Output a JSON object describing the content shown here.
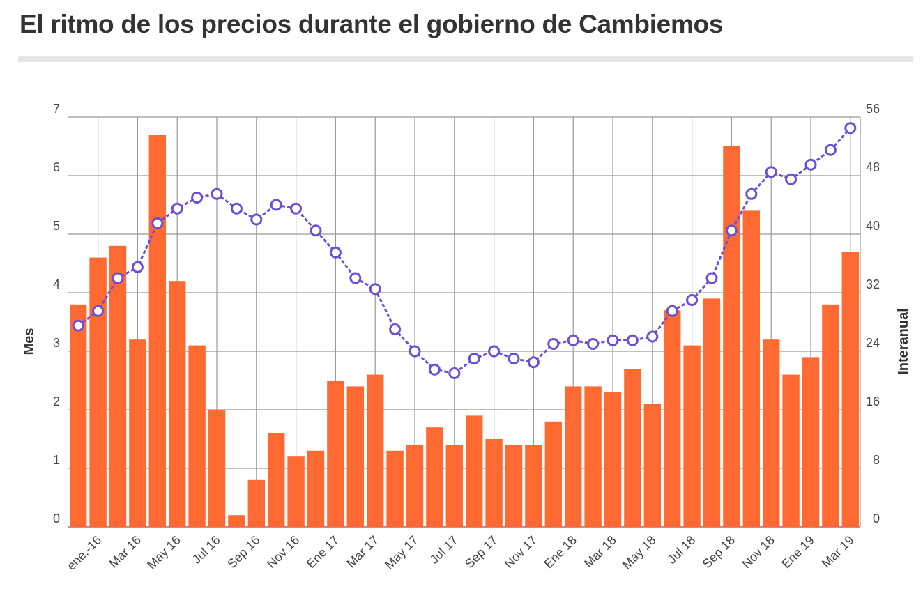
{
  "header": {
    "title": "El ritmo de los precios durante el gobierno de Cambiemos"
  },
  "chart_data": {
    "type": "bar+line",
    "title": "El ritmo de los precios durante el gobierno de Cambiemos",
    "ylabel_left": "Mes",
    "ylabel_right": "Interanual",
    "ylim_left": [
      0,
      7
    ],
    "ylim_right": [
      0,
      56
    ],
    "yticks_left": [
      0,
      1,
      2,
      3,
      4,
      5,
      6,
      7
    ],
    "yticks_right": [
      0,
      8,
      16,
      24,
      32,
      40,
      48,
      56
    ],
    "x_tick_labels": [
      "ene.-16",
      "Mar 16",
      "May 16",
      "Jul 16",
      "Sep 16",
      "Nov 16",
      "Ene 17",
      "Mar 17",
      "May 17",
      "Jul 17",
      "Sep 17",
      "Nov 17",
      "Ene 18",
      "Mar 18",
      "May 18",
      "Jul 18",
      "Sep 18",
      "Nov 18",
      "Ene 19",
      "Mar 19"
    ],
    "grid": true,
    "colors": {
      "bars": "#ff6a33",
      "line": "#6a4fdb",
      "grid": "#999999"
    },
    "series": [
      {
        "kind": "bar",
        "axis": "left",
        "values": [
          3.8,
          4.6,
          4.8,
          3.2,
          6.7,
          4.2,
          3.1,
          2.0,
          0.2,
          0.8,
          1.6,
          1.2,
          1.3,
          2.5,
          2.4,
          2.6,
          1.3,
          1.4,
          1.7,
          1.4,
          1.9,
          1.5,
          1.4,
          1.4,
          1.8,
          2.4,
          2.4,
          2.3,
          2.7,
          2.1,
          3.7,
          3.1,
          3.9,
          6.5,
          5.4,
          3.2,
          2.6,
          2.9,
          3.8,
          4.7
        ]
      },
      {
        "kind": "line",
        "axis": "right",
        "values": [
          27.5,
          29.5,
          34.0,
          35.5,
          41.5,
          43.5,
          45.0,
          45.5,
          43.5,
          42.0,
          44.0,
          43.5,
          40.5,
          37.5,
          34.0,
          32.5,
          27.0,
          24.0,
          21.5,
          21.0,
          23.0,
          24.0,
          23.0,
          22.5,
          25.0,
          25.5,
          25.0,
          25.5,
          25.5,
          26.0,
          29.5,
          31.0,
          34.0,
          40.5,
          45.5,
          48.5,
          47.5,
          49.5,
          51.5,
          54.5
        ]
      }
    ]
  }
}
